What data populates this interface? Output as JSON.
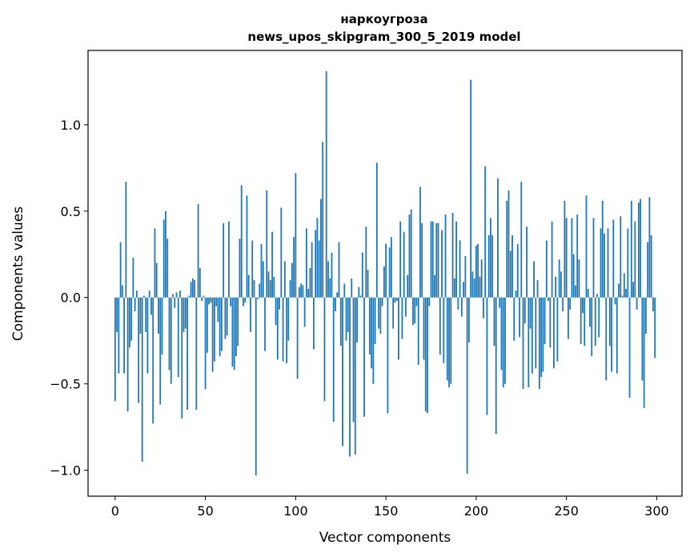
{
  "chart_data": {
    "type": "bar",
    "title_line1": "наркоугроза",
    "title_line2": "news_upos_skipgram_300_5_2019 model",
    "xlabel": "Vector components",
    "ylabel": "Components values",
    "xlim": [
      -15,
      314
    ],
    "ylim": [
      -1.15,
      1.43
    ],
    "xticks": [
      0,
      50,
      100,
      150,
      200,
      250,
      300
    ],
    "yticks": [
      -1.0,
      -0.5,
      0.0,
      0.5,
      1.0
    ],
    "ytick_labels": [
      "−1.0",
      "−0.5",
      "0.0",
      "0.5",
      "1.0"
    ],
    "bar_color": "#1f77b4",
    "grid": false,
    "legend": "none",
    "values": [
      -0.6,
      -0.2,
      -0.44,
      0.32,
      0.07,
      -0.44,
      0.67,
      -0.66,
      -0.29,
      -0.25,
      0.23,
      -0.08,
      0.04,
      -0.61,
      -0.21,
      -0.95,
      0.01,
      -0.2,
      -0.44,
      0.04,
      -0.1,
      -0.73,
      0.4,
      0.2,
      -0.21,
      -0.62,
      -0.33,
      0.45,
      0.5,
      0.34,
      -0.42,
      -0.5,
      0.02,
      -0.06,
      0.03,
      -0.46,
      0.04,
      -0.7,
      -0.2,
      -0.18,
      -0.65,
      0.01,
      0.09,
      0.11,
      0.1,
      -0.65,
      0.54,
      0.17,
      -0.02,
      0.01,
      -0.53,
      -0.32,
      -0.04,
      -0.03,
      -0.43,
      -0.37,
      -0.05,
      -0.14,
      -0.34,
      -0.31,
      0.43,
      -0.24,
      -0.22,
      0.44,
      -0.05,
      -0.4,
      -0.42,
      -0.34,
      -0.28,
      0.34,
      0.65,
      -0.05,
      -0.03,
      0.59,
      0.13,
      -0.2,
      0.33,
      0.1,
      -1.03,
      -0.01,
      0.08,
      0.31,
      0.21,
      -0.31,
      0.62,
      0.15,
      0.1,
      0.38,
      0.12,
      -0.16,
      -0.36,
      -0.07,
      0.52,
      -0.37,
      0.21,
      -0.38,
      -0.25,
      0.1,
      0.2,
      0.35,
      0.72,
      -0.47,
      0.06,
      0.08,
      0.07,
      -0.17,
      0.4,
      0.05,
      0.17,
      0.32,
      -0.3,
      0.39,
      0.46,
      0.33,
      0.57,
      0.9,
      -0.6,
      1.31,
      0.21,
      0.11,
      0.26,
      -0.72,
      -0.08,
      0.03,
      0.32,
      -0.28,
      -0.86,
      0.08,
      -0.25,
      -0.2,
      -0.92,
      0.11,
      -0.72,
      -0.91,
      -0.26,
      0.06,
      0.01,
      0.26,
      -0.69,
      0.41,
      0.16,
      -0.33,
      -0.41,
      -0.5,
      -0.27,
      0.78,
      -0.18,
      -0.21,
      -0.05,
      0.18,
      0.31,
      -0.67,
      0.29,
      0.35,
      -0.18,
      -0.03,
      -0.02,
      -0.36,
      0.44,
      -0.24,
      0.38,
      -0.11,
      0.13,
      0.48,
      0.51,
      -0.16,
      -0.15,
      -0.05,
      -0.39,
      0.64,
      0.43,
      -0.36,
      -0.66,
      -0.67,
      -0.05,
      0.44,
      0.44,
      0.13,
      0.43,
      0.43,
      -0.33,
      0.39,
      -0.38,
      0.48,
      -0.48,
      -0.52,
      -0.5,
      0.49,
      0.11,
      0.44,
      -0.07,
      0.33,
      -0.11,
      0.09,
      0.24,
      -1.02,
      -0.26,
      1.26,
      0.15,
      0.11,
      0.3,
      0.31,
      0.12,
      0.22,
      -0.12,
      0.76,
      -0.68,
      0.36,
      0.46,
      0.36,
      -0.28,
      -0.79,
      0.69,
      -0.06,
      -0.42,
      -0.52,
      -0.5,
      0.56,
      0.62,
      0.27,
      0.36,
      -0.25,
      0.04,
      0.31,
      -0.23,
      0.67,
      -0.53,
      -0.15,
      0.41,
      -0.52,
      -0.18,
      -0.44,
      0.21,
      -0.41,
      0.1,
      -0.53,
      -0.46,
      -0.43,
      -0.27,
      0.33,
      -0.02,
      -0.29,
      0.44,
      -0.41,
      0.12,
      -0.37,
      0.22,
      0.15,
      -0.08,
      0.56,
      0.46,
      -0.24,
      -0.07,
      0.46,
      0.25,
      0.07,
      0.48,
      0.22,
      -0.27,
      -0.09,
      -0.28,
      0.59,
      0.05,
      -0.17,
      -0.34,
      0.46,
      -0.28,
      0.02,
      -0.23,
      0.4,
      0.56,
      0.37,
      -0.48,
      0.4,
      -0.28,
      -0.43,
      0.45,
      -0.04,
      -0.44,
      0.08,
      0.47,
      0.01,
      0.14,
      0.05,
      0.4,
      -0.58,
      0.56,
      0.09,
      0.44,
      -0.07,
      0.55,
      0.57,
      -0.48,
      -0.64,
      -0.21,
      0.32,
      0.58,
      0.36,
      -0.08,
      -0.35
    ]
  }
}
